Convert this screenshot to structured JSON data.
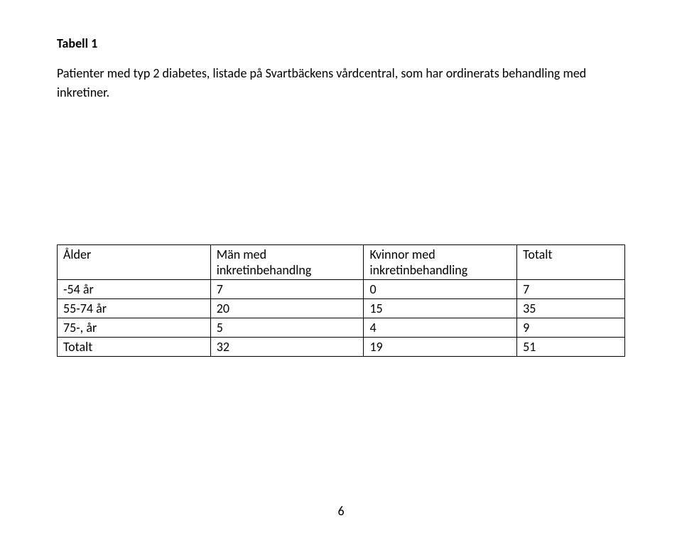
{
  "title": "Tabell 1",
  "description": "Patienter med typ 2 diabetes, listade på Svartbäckens vårdcentral, som har ordinerats behandling med inkretiner.",
  "table": {
    "columns": [
      "Ålder",
      "Män med inkretinbehandlng",
      "Kvinnor med inkretinbehandling",
      "Totalt"
    ],
    "rows": [
      [
        "-54 år",
        "7",
        "0",
        "7"
      ],
      [
        "55-74 år",
        "20",
        "15",
        "35"
      ],
      [
        "75-, år",
        "5",
        "4",
        "9"
      ],
      [
        "Totalt",
        "32",
        "19",
        "51"
      ]
    ]
  },
  "page_number": "6",
  "colors": {
    "background": "#ffffff",
    "text": "#000000",
    "border": "#000000"
  }
}
